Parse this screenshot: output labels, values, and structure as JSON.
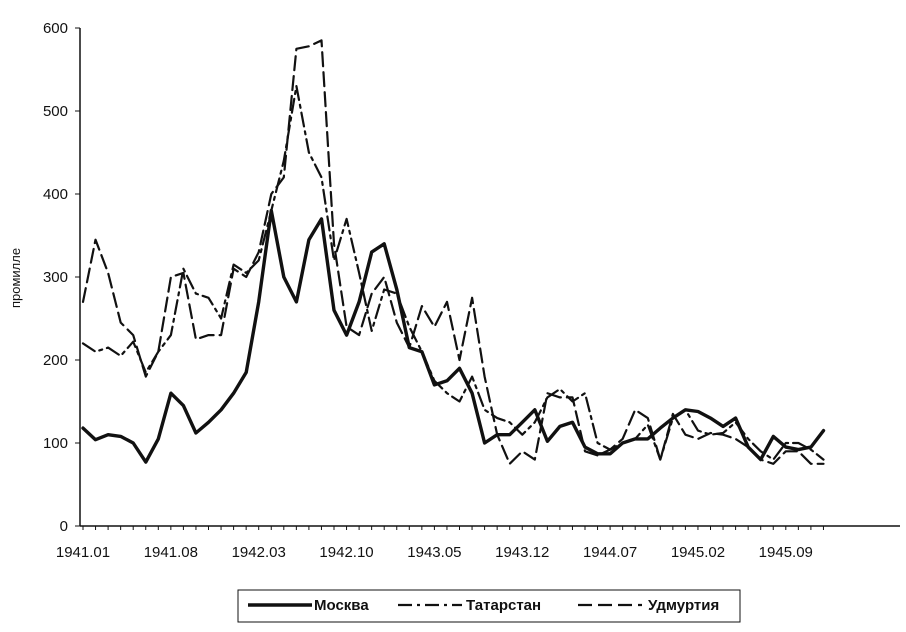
{
  "chart_data": {
    "type": "line",
    "title": "",
    "xlabel": "",
    "ylabel": "промилле",
    "ylim": [
      0,
      600
    ],
    "yticks": [
      "0",
      "100",
      "200",
      "300",
      "400",
      "500",
      "600"
    ],
    "xticks": [
      "1941.01",
      "1941.08",
      "1942.03",
      "1942.10",
      "1943.05",
      "1943.12",
      "1944.07",
      "1945.02",
      "1945.09"
    ],
    "x": [
      "1941.01",
      "1941.02",
      "1941.03",
      "1941.04",
      "1941.05",
      "1941.06",
      "1941.07",
      "1941.08",
      "1941.09",
      "1941.10",
      "1941.11",
      "1941.12",
      "1942.01",
      "1942.02",
      "1942.03",
      "1942.04",
      "1942.05",
      "1942.06",
      "1942.07",
      "1942.08",
      "1942.09",
      "1942.10",
      "1942.11",
      "1942.12",
      "1943.01",
      "1943.02",
      "1943.03",
      "1943.04",
      "1943.05",
      "1943.06",
      "1943.07",
      "1943.08",
      "1943.09",
      "1943.10",
      "1943.11",
      "1943.12",
      "1944.01",
      "1944.02",
      "1944.03",
      "1944.04",
      "1944.05",
      "1944.06",
      "1944.07",
      "1944.08",
      "1944.09",
      "1944.10",
      "1944.11",
      "1944.12",
      "1945.01",
      "1945.02",
      "1945.03",
      "1945.04",
      "1945.05",
      "1945.06",
      "1945.07",
      "1945.08",
      "1945.09",
      "1945.10",
      "1945.11",
      "1945.12"
    ],
    "grid": false,
    "legend_position": "bottom",
    "series": [
      {
        "name": "Москва",
        "style": "solid-bold",
        "color": "#111111",
        "values": [
          118,
          104,
          110,
          108,
          100,
          77,
          105,
          160,
          145,
          112,
          125,
          140,
          160,
          185,
          270,
          380,
          300,
          270,
          345,
          370,
          260,
          230,
          270,
          330,
          340,
          285,
          215,
          210,
          170,
          175,
          190,
          160,
          100,
          110,
          110,
          125,
          140,
          102,
          120,
          125,
          95,
          87,
          87,
          100,
          105,
          105,
          118,
          130,
          140,
          138,
          130,
          120,
          130,
          95,
          80,
          108,
          95,
          92,
          95,
          115
        ]
      },
      {
        "name": "Татарстан",
        "style": "dash-dot",
        "color": "#111111",
        "values": [
          220,
          210,
          215,
          205,
          222,
          185,
          210,
          230,
          310,
          280,
          275,
          250,
          315,
          305,
          320,
          380,
          440,
          530,
          450,
          420,
          320,
          370,
          305,
          235,
          285,
          280,
          240,
          210,
          175,
          160,
          150,
          180,
          140,
          130,
          125,
          110,
          125,
          155,
          165,
          150,
          160,
          100,
          92,
          100,
          105,
          122,
          80,
          130,
          140,
          115,
          110,
          112,
          125,
          105,
          90,
          80,
          100,
          100,
          92,
          80
        ]
      },
      {
        "name": "Удмуртия",
        "style": "dashed",
        "color": "#111111",
        "values": [
          270,
          345,
          305,
          245,
          230,
          180,
          210,
          300,
          305,
          225,
          230,
          230,
          310,
          300,
          330,
          400,
          420,
          575,
          578,
          585,
          340,
          240,
          230,
          280,
          300,
          245,
          215,
          265,
          240,
          270,
          200,
          275,
          180,
          110,
          75,
          90,
          80,
          160,
          155,
          155,
          90,
          85,
          92,
          105,
          140,
          130,
          80,
          135,
          110,
          105,
          112,
          110,
          105,
          95,
          80,
          75,
          90,
          90,
          75,
          75
        ]
      }
    ]
  }
}
